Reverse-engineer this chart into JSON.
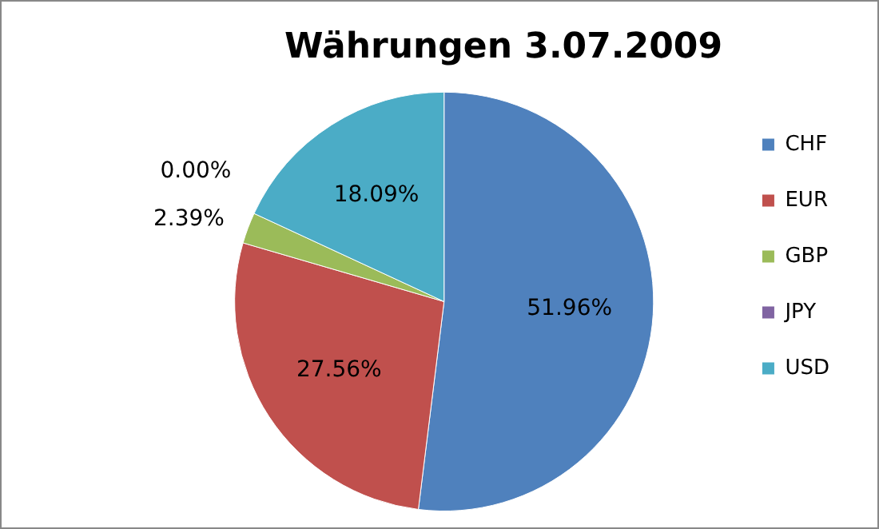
{
  "chart_data": {
    "type": "pie",
    "title": "Währungen 3.07.2009",
    "categories": [
      "CHF",
      "EUR",
      "GBP",
      "JPY",
      "USD"
    ],
    "values": [
      51.96,
      27.56,
      2.39,
      0.0,
      18.09
    ],
    "value_labels": [
      "51.96%",
      "27.56%",
      "2.39%",
      "0.00%",
      "18.09%"
    ],
    "colors": [
      "#4f81bd",
      "#c0504d",
      "#9bbb59",
      "#8064a2",
      "#4bacc6"
    ],
    "legend": "right"
  }
}
